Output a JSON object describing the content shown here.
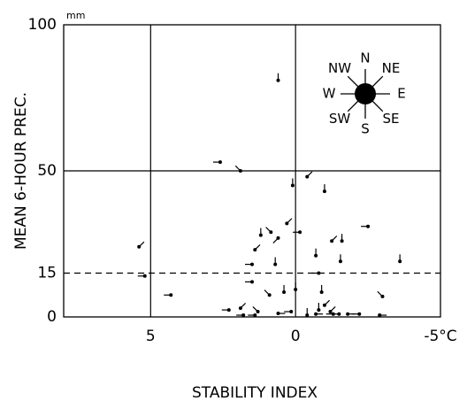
{
  "chart_data": {
    "type": "scatter",
    "ylabel": "MEAN 6-HOUR PREC.",
    "xlabel": "STABILITY INDEX",
    "y_unit": "mm",
    "xlim": [
      8,
      -5
    ],
    "ylim": [
      0,
      100
    ],
    "xticks": [
      5,
      0,
      {
        "value": -5,
        "label": "-5°C"
      }
    ],
    "yticks": [
      0,
      15,
      50,
      100
    ],
    "grid": true,
    "dashed_y": 15,
    "color": "#000000",
    "compass": [
      "N",
      "NE",
      "E",
      "SE",
      "S",
      "SW",
      "W",
      "NW"
    ],
    "points": {
      "x": [
        0.6,
        2.6,
        1.9,
        0.1,
        -0.4,
        -1.0,
        5.4,
        5.2,
        4.3,
        0.85,
        0.6,
        0.3,
        -0.15,
        1.4,
        1.2,
        0.7,
        1.5,
        -0.7,
        -1.25,
        -1.6,
        -1.55,
        -2.5,
        -3.6,
        -3.0,
        -0.8,
        1.5,
        0.9,
        0.4,
        0.0,
        -0.9,
        2.3,
        1.9,
        1.8,
        1.3,
        1.4,
        0.6,
        0.15,
        -0.7,
        -0.8,
        -1.0,
        -1.2,
        -1.3,
        -1.5,
        -1.8,
        -2.2,
        -2.9,
        -0.4
      ],
      "y": [
        81,
        53,
        50,
        45,
        48,
        43,
        24,
        14,
        7.5,
        29,
        27,
        32,
        29,
        23,
        28,
        18,
        18,
        21,
        26,
        26,
        19,
        31,
        19,
        7,
        15,
        12,
        7.5,
        8.5,
        9.4,
        8.5,
        2.4,
        3,
        0.6,
        1.8,
        0.6,
        1.2,
        1.8,
        1,
        2.4,
        4,
        1.8,
        1,
        1,
        1,
        1,
        0.6,
        0.6
      ],
      "dir": [
        "N",
        "W",
        "NW",
        "N",
        "NE",
        "N",
        "NE",
        "W",
        "W",
        "NW",
        "SW",
        "NE",
        "W",
        "NE",
        "N",
        "N",
        "W",
        "N",
        "NE",
        "N",
        "N",
        "W",
        "N",
        "NW",
        "W",
        "W",
        "NW",
        "N",
        "N",
        "N",
        "W",
        "NE",
        "W",
        "NW",
        "W",
        "E",
        "W",
        "E",
        "N",
        "NE",
        "NE",
        "W",
        "W",
        "E",
        "W",
        "E",
        "N"
      ]
    }
  }
}
